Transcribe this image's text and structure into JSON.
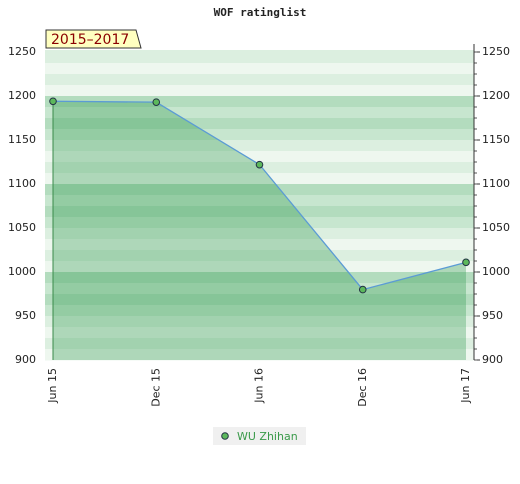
{
  "chart_data": {
    "type": "line",
    "title": "WOF ratinglist",
    "badge": "2015–2017",
    "categories": [
      "Jun 15",
      "Dec 15",
      "Jun 16",
      "Dec 16",
      "Jun 17"
    ],
    "series": [
      {
        "name": "WU Zhihan",
        "color": "#5b9bd5",
        "values": [
          1194,
          1193,
          1122,
          980,
          1011
        ]
      }
    ],
    "ylim": [
      900,
      1250
    ],
    "yticks": [
      900,
      950,
      1000,
      1050,
      1100,
      1150,
      1200,
      1250
    ]
  }
}
